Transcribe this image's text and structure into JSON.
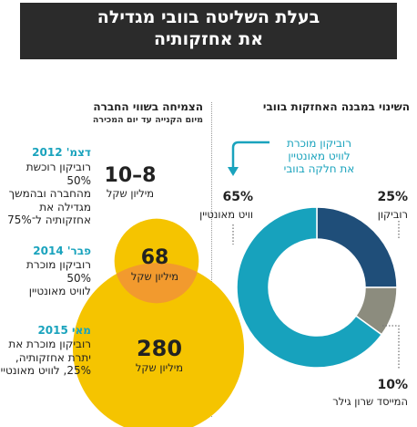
{
  "header": {
    "title_line1": "בעלת השליטה בוובי מגדילה",
    "title_line2": "את אחזקותיה"
  },
  "left": {
    "heading": "הצמיחה בשווי החברה",
    "subheading": "מיום הקנייה עד יום המכירה",
    "events": [
      {
        "date": "דצמ' 2012",
        "desc": [
          "רוביקון רוכשת 50%",
          "מהחברה ובהמשך",
          "מגדילה את",
          "אחזקותיה ל־75%"
        ],
        "value": "10–8",
        "unit": "מיליון שקל"
      },
      {
        "date": "פבר' 2014",
        "desc": [
          "רוביקון מוכרת 50%",
          "לוויט מאונטיין"
        ],
        "value": "68",
        "unit": "מיליון שקל"
      },
      {
        "date": "מאי 2015",
        "desc": [
          "רוביקון מוכרת את",
          "יתרת אחזקותיה,",
          "25%, לוויט מאונטיין"
        ],
        "value": "280",
        "unit": "מיליון שקל"
      }
    ]
  },
  "right": {
    "heading": "השינוי במבנה האחזקות בוובי",
    "note": [
      "רוביקון מוכרת",
      "לוויט מאונטיין",
      "את חלקה בוובי"
    ],
    "labels": [
      {
        "pct": "65%",
        "name": "וויט מאונטיין"
      },
      {
        "pct": "25%",
        "name": "רוביקון"
      },
      {
        "pct": "10%",
        "name": "המייסד שרון גילר"
      }
    ]
  },
  "colors": {
    "teal": "#17a2bd",
    "navy": "#1f4e79",
    "gray": "#8c8c7e",
    "yellow": "#f5c400",
    "orange": "#f29a2e",
    "banner": "#2b2b2b"
  },
  "chart_data": [
    {
      "type": "pie",
      "title": "השינוי במבנה האחזקות בוובי",
      "categories": [
        "וויט מאונטיין",
        "רוביקון",
        "המייסד שרון גילר"
      ],
      "values": [
        65,
        25,
        10
      ]
    },
    {
      "type": "bubble",
      "title": "הצמיחה בשווי החברה",
      "unit": "מיליון שקל",
      "categories": [
        "דצמ' 2012",
        "פבר' 2014",
        "מאי 2015"
      ],
      "values": [
        9,
        68,
        280
      ],
      "labels": [
        "10–8",
        "68",
        "280"
      ]
    }
  ]
}
